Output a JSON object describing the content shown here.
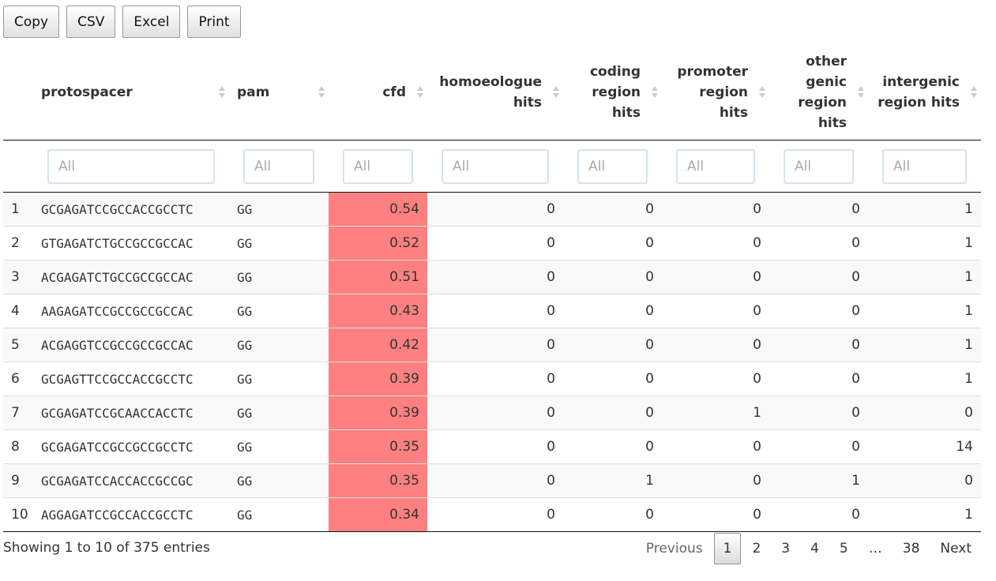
{
  "buttons": [
    "Copy",
    "CSV",
    "Excel",
    "Print"
  ],
  "table": {
    "columns": [
      "protospacer",
      "pam",
      "cfd",
      "homoeologue hits",
      "coding region hits",
      "promoter region hits",
      "other genic region hits",
      "intergenic region hits"
    ],
    "filters": [
      "All",
      "All",
      "All",
      "All",
      "All",
      "All",
      "All",
      "All"
    ],
    "rows": [
      [
        "1",
        "GCGAGATCCGCCACCGCCTC",
        "GG",
        "0.54",
        "0",
        "0",
        "0",
        "0",
        "1"
      ],
      [
        "2",
        "GTGAGATCTGCCGCCGCCAC",
        "GG",
        "0.52",
        "0",
        "0",
        "0",
        "0",
        "1"
      ],
      [
        "3",
        "ACGAGATCTGCCGCCGCCAC",
        "GG",
        "0.51",
        "0",
        "0",
        "0",
        "0",
        "1"
      ],
      [
        "4",
        "AAGAGATCCGCCGCCGCCAC",
        "GG",
        "0.43",
        "0",
        "0",
        "0",
        "0",
        "1"
      ],
      [
        "5",
        "ACGAGGTCCGCCGCCGCCAC",
        "GG",
        "0.42",
        "0",
        "0",
        "0",
        "0",
        "1"
      ],
      [
        "6",
        "GCGAGTTCCGCCACCGCCTC",
        "GG",
        "0.39",
        "0",
        "0",
        "0",
        "0",
        "1"
      ],
      [
        "7",
        "GCGAGATCCGCAACCACCTC",
        "GG",
        "0.39",
        "0",
        "0",
        "1",
        "0",
        "0"
      ],
      [
        "8",
        "GCGAGATCCGCCGCCGCCTC",
        "GG",
        "0.35",
        "0",
        "0",
        "0",
        "0",
        "14"
      ],
      [
        "9",
        "GCGAGATCCACCACCGCCGC",
        "GG",
        "0.35",
        "0",
        "1",
        "0",
        "1",
        "0"
      ],
      [
        "10",
        "AGGAGATCCGCCACCGCCTC",
        "GG",
        "0.34",
        "0",
        "0",
        "0",
        "0",
        "1"
      ]
    ]
  },
  "info": "Showing 1 to 10 of 375 entries",
  "pagination": [
    "Previous",
    "1",
    "2",
    "3",
    "4",
    "5",
    "…",
    "38",
    "Next"
  ]
}
